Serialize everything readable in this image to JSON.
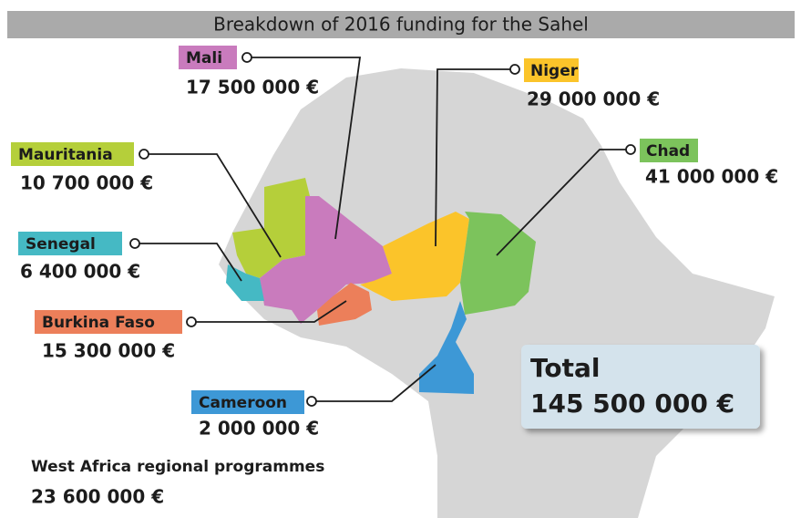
{
  "header": {
    "title": "Breakdown of 2016 funding for the Sahel"
  },
  "countries": [
    {
      "label": "Mali",
      "amount": "17 500 000 €"
    },
    {
      "label": "Niger",
      "amount": "29 000 000 €"
    },
    {
      "label": "Mauritania",
      "amount": "10 700 000 €"
    },
    {
      "label": "Chad",
      "amount": "41 000 000 €"
    },
    {
      "label": "Senegal",
      "amount": "6 400 000 €"
    },
    {
      "label": "Burkina Faso",
      "amount": "15 300 000 €"
    },
    {
      "label": "Cameroon",
      "amount": "2 000 000 €"
    }
  ],
  "regional": {
    "label": "West Africa regional programmes",
    "amount": "23 600 000 €"
  },
  "total": {
    "label": "Total",
    "amount": "145 500 000 €"
  }
}
